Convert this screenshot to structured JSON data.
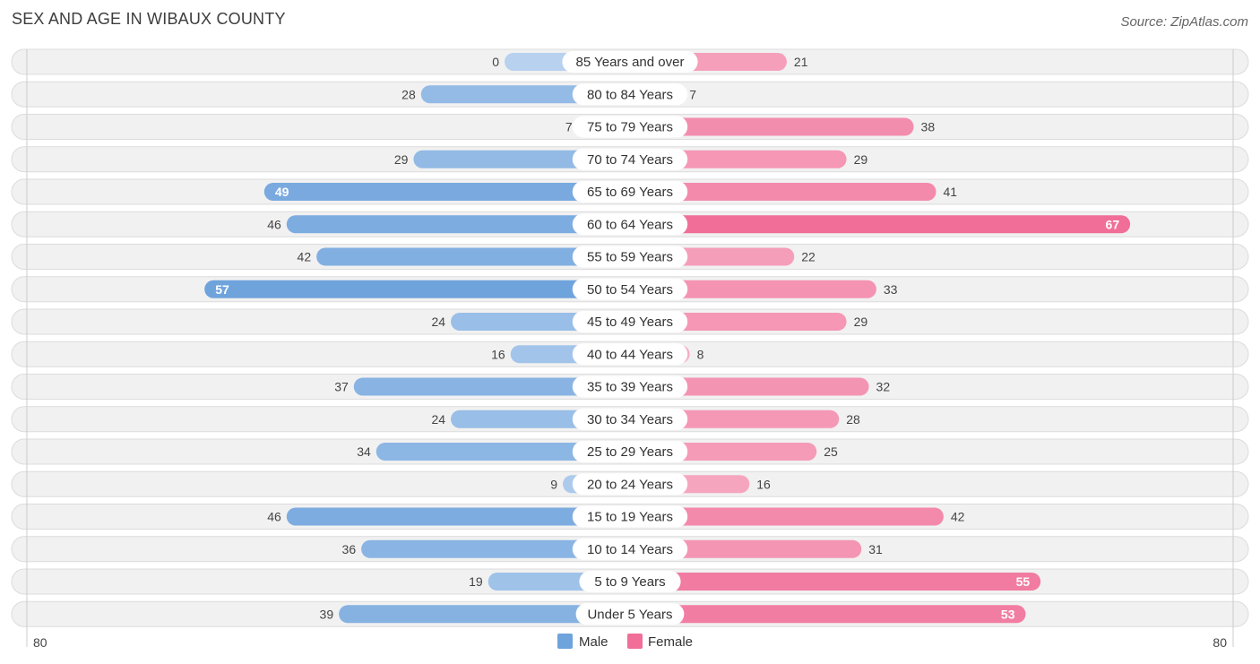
{
  "title": "SEX AND AGE IN WIBAUX COUNTY",
  "source": "Source: ZipAtlas.com",
  "chart_data": {
    "type": "bar",
    "orientation": "horizontal-diverging",
    "categories": [
      "85 Years and over",
      "80 to 84 Years",
      "75 to 79 Years",
      "70 to 74 Years",
      "65 to 69 Years",
      "60 to 64 Years",
      "55 to 59 Years",
      "50 to 54 Years",
      "45 to 49 Years",
      "40 to 44 Years",
      "35 to 39 Years",
      "30 to 34 Years",
      "25 to 29 Years",
      "20 to 24 Years",
      "15 to 19 Years",
      "10 to 14 Years",
      "5 to 9 Years",
      "Under 5 Years"
    ],
    "series": [
      {
        "name": "Male",
        "color": "#6fa3dc",
        "values": [
          0,
          28,
          7,
          29,
          49,
          46,
          42,
          57,
          24,
          16,
          37,
          24,
          34,
          9,
          46,
          36,
          19,
          39
        ]
      },
      {
        "name": "Female",
        "color": "#f06e98",
        "values": [
          21,
          7,
          38,
          29,
          41,
          67,
          22,
          33,
          29,
          8,
          32,
          28,
          25,
          16,
          42,
          31,
          55,
          53
        ]
      }
    ],
    "axis": {
      "left_label": "80",
      "right_label": "80",
      "max": 80
    },
    "legend": {
      "placement": "bottom-center",
      "items": [
        "Male",
        "Female"
      ]
    }
  }
}
